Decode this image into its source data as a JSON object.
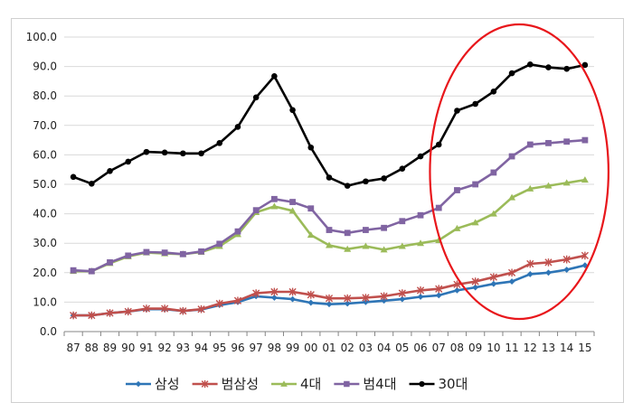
{
  "chart_data": {
    "type": "line",
    "x": [
      "87",
      "88",
      "89",
      "90",
      "91",
      "92",
      "93",
      "94",
      "95",
      "96",
      "97",
      "98",
      "99",
      "00",
      "01",
      "02",
      "03",
      "04",
      "05",
      "06",
      "07",
      "08",
      "09",
      "10",
      "11",
      "12",
      "13",
      "14",
      "15"
    ],
    "ylim": [
      0,
      100
    ],
    "yticks": [
      "0.0",
      "10.0",
      "20.0",
      "30.0",
      "40.0",
      "50.0",
      "60.0",
      "70.0",
      "80.0",
      "90.0",
      "100.0"
    ],
    "grid": true,
    "legend_position": "bottom",
    "series": [
      {
        "name": "삼성",
        "color": "#2e75b6",
        "marker": "diamond",
        "values": [
          5.5,
          5.5,
          6.3,
          6.8,
          7.6,
          7.6,
          7.0,
          7.5,
          9.0,
          10.0,
          12.0,
          11.5,
          11.0,
          9.8,
          9.3,
          9.5,
          10.0,
          10.5,
          11.0,
          11.8,
          12.3,
          14.0,
          15.0,
          16.2,
          17.0,
          19.5,
          20.0,
          21.0,
          22.5
        ]
      },
      {
        "name": "범삼성",
        "color": "#c0504d",
        "marker": "star",
        "values": [
          5.5,
          5.5,
          6.3,
          6.8,
          7.8,
          7.8,
          7.0,
          7.6,
          9.5,
          10.5,
          13.0,
          13.5,
          13.5,
          12.5,
          11.3,
          11.3,
          11.5,
          12.0,
          13.0,
          14.0,
          14.5,
          16.0,
          17.0,
          18.5,
          20.0,
          23.0,
          23.5,
          24.5,
          25.8
        ]
      },
      {
        "name": "4대",
        "color": "#9bbb59",
        "marker": "triangle",
        "values": [
          20.5,
          20.5,
          23.2,
          25.5,
          26.8,
          26.5,
          26.3,
          27.0,
          29.0,
          33.0,
          40.5,
          42.5,
          41.0,
          32.8,
          29.3,
          28.0,
          29.0,
          27.8,
          29.0,
          30.0,
          31.0,
          35.0,
          37.0,
          40.0,
          45.5,
          48.5,
          49.5,
          50.5,
          51.5
        ]
      },
      {
        "name": "범4대",
        "color": "#8064a2",
        "marker": "square",
        "values": [
          20.8,
          20.5,
          23.5,
          25.8,
          27.0,
          26.8,
          26.3,
          27.2,
          29.8,
          34.0,
          41.2,
          45.0,
          44.0,
          41.8,
          34.5,
          33.5,
          34.5,
          35.2,
          37.5,
          39.5,
          42.0,
          48.0,
          50.0,
          54.0,
          59.5,
          63.5,
          64.0,
          64.5,
          65.0
        ]
      },
      {
        "name": "30대",
        "color": "#000000",
        "marker": "circle",
        "values": [
          52.5,
          50.2,
          54.5,
          57.7,
          61.0,
          60.8,
          60.5,
          60.5,
          64.0,
          69.5,
          79.5,
          86.7,
          75.2,
          62.5,
          52.3,
          49.5,
          51.0,
          52.0,
          55.3,
          59.5,
          63.5,
          75.0,
          77.3,
          81.5,
          87.7,
          90.7,
          89.7,
          89.2,
          90.5
        ]
      }
    ],
    "annotation": {
      "type": "ellipse",
      "color": "#e8161b"
    }
  }
}
